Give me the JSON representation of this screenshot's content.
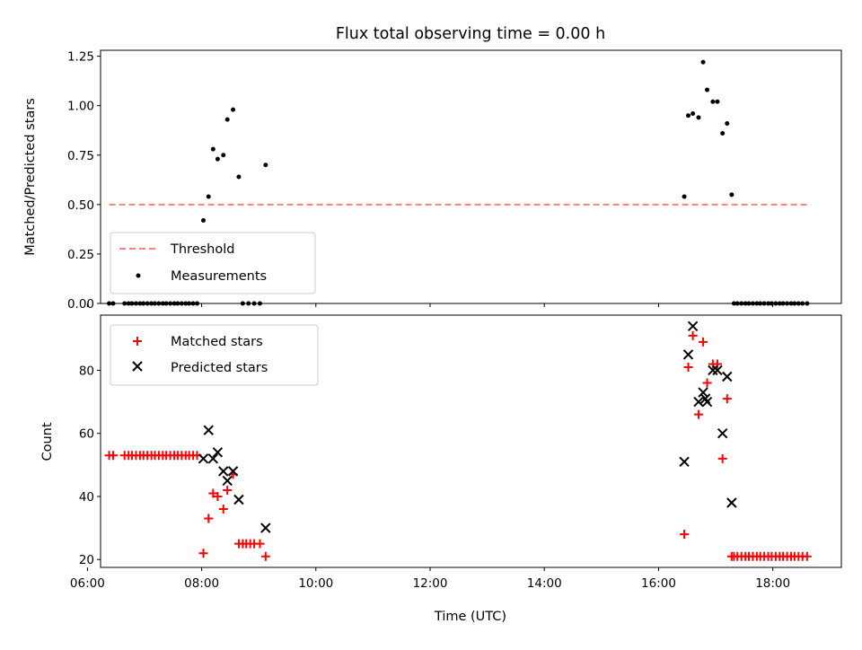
{
  "figure": {
    "title": "Flux total observing time = 0.00 h"
  },
  "chart_data": [
    {
      "type": "scatter",
      "ylabel": "Matched/Predicted stars",
      "xlim": [
        6.23,
        19.2
      ],
      "ylim": [
        0,
        1.28
      ],
      "yticks": [
        "0.00",
        "0.25",
        "0.50",
        "0.75",
        "1.00",
        "1.25"
      ],
      "threshold": {
        "name": "Threshold",
        "y": 0.5,
        "x": [
          6.38,
          18.63
        ],
        "color": "#ff7f7f",
        "style": "dashed"
      },
      "legend": {
        "position": "lower-left",
        "entries": [
          "Threshold",
          "Measurements"
        ]
      },
      "series": [
        {
          "name": "Measurements",
          "marker": "dot",
          "color": "#000000",
          "x": [
            6.38,
            6.45,
            6.65,
            6.72,
            6.78,
            6.85,
            6.92,
            6.98,
            7.05,
            7.12,
            7.18,
            7.25,
            7.32,
            7.38,
            7.45,
            7.52,
            7.58,
            7.65,
            7.72,
            7.78,
            7.85,
            7.92,
            8.03,
            8.12,
            8.2,
            8.28,
            8.38,
            8.45,
            8.55,
            8.65,
            8.72,
            8.82,
            8.92,
            9.02,
            9.12,
            16.45,
            16.52,
            16.6,
            16.7,
            16.78,
            16.85,
            16.95,
            17.03,
            17.12,
            17.2,
            17.28,
            17.32,
            17.38,
            17.45,
            17.52,
            17.58,
            17.65,
            17.72,
            17.78,
            17.85,
            17.92,
            17.98,
            18.05,
            18.12,
            18.18,
            18.25,
            18.32,
            18.38,
            18.45,
            18.52,
            18.6
          ],
          "y": [
            0,
            0,
            0,
            0,
            0,
            0,
            0,
            0,
            0,
            0,
            0,
            0,
            0,
            0,
            0,
            0,
            0,
            0,
            0,
            0,
            0,
            0,
            0.42,
            0.54,
            0.78,
            0.73,
            0.75,
            0.93,
            0.98,
            0.64,
            0,
            0,
            0,
            0,
            0.7,
            0.54,
            0.95,
            0.96,
            0.94,
            1.22,
            1.08,
            1.02,
            1.02,
            0.86,
            0.91,
            0.55,
            0,
            0,
            0,
            0,
            0,
            0,
            0,
            0,
            0,
            0,
            0,
            0,
            0,
            0,
            0,
            0,
            0,
            0,
            0,
            0
          ]
        }
      ]
    },
    {
      "type": "scatter",
      "xlabel": "Time (UTC)",
      "ylabel": "Count",
      "xlim": [
        6.23,
        19.2
      ],
      "ylim": [
        17.5,
        97.5
      ],
      "xticks": [
        6,
        8,
        10,
        12,
        14,
        16,
        18
      ],
      "xtick_labels": [
        "06:00",
        "08:00",
        "10:00",
        "12:00",
        "14:00",
        "16:00",
        "18:00"
      ],
      "yticks": [
        "20",
        "40",
        "60",
        "80"
      ],
      "legend": {
        "position": "top-left",
        "entries": [
          "Matched stars",
          "Predicted stars"
        ]
      },
      "series": [
        {
          "name": "Matched stars",
          "marker": "plus",
          "color": "#ff0000",
          "x": [
            6.38,
            6.45,
            6.65,
            6.72,
            6.78,
            6.85,
            6.92,
            6.98,
            7.05,
            7.12,
            7.18,
            7.25,
            7.32,
            7.38,
            7.45,
            7.52,
            7.58,
            7.65,
            7.72,
            7.78,
            7.85,
            7.92,
            8.03,
            8.12,
            8.2,
            8.28,
            8.38,
            8.45,
            8.55,
            8.65,
            8.72,
            8.78,
            8.85,
            8.92,
            9.02,
            9.12,
            16.45,
            16.52,
            16.6,
            16.7,
            16.78,
            16.85,
            16.95,
            17.03,
            17.12,
            17.2,
            17.28,
            17.32,
            17.38,
            17.45,
            17.52,
            17.58,
            17.65,
            17.72,
            17.78,
            17.85,
            17.92,
            17.98,
            18.05,
            18.12,
            18.18,
            18.25,
            18.32,
            18.38,
            18.45,
            18.52,
            18.6
          ],
          "y": [
            53,
            53,
            53,
            53,
            53,
            53,
            53,
            53,
            53,
            53,
            53,
            53,
            53,
            53,
            53,
            53,
            53,
            53,
            53,
            53,
            53,
            53,
            22,
            33,
            41,
            40,
            36,
            42,
            47,
            25,
            25,
            25,
            25,
            25,
            25,
            21,
            28,
            81,
            91,
            66,
            89,
            76,
            82,
            82,
            52,
            71,
            21,
            21,
            21,
            21,
            21,
            21,
            21,
            21,
            21,
            21,
            21,
            21,
            21,
            21,
            21,
            21,
            21,
            21,
            21,
            21,
            21
          ]
        },
        {
          "name": "Predicted stars",
          "marker": "x",
          "color": "#000000",
          "x": [
            8.03,
            8.12,
            8.2,
            8.28,
            8.38,
            8.45,
            8.55,
            8.65,
            9.12,
            16.45,
            16.52,
            16.6,
            16.7,
            16.78,
            16.82,
            16.85,
            16.95,
            17.03,
            17.12,
            17.2,
            17.28
          ],
          "y": [
            52,
            61,
            52,
            54,
            48,
            45,
            48,
            39,
            30,
            51,
            85,
            94,
            70,
            73,
            71,
            70,
            80,
            80,
            60,
            78,
            38
          ]
        }
      ]
    }
  ]
}
